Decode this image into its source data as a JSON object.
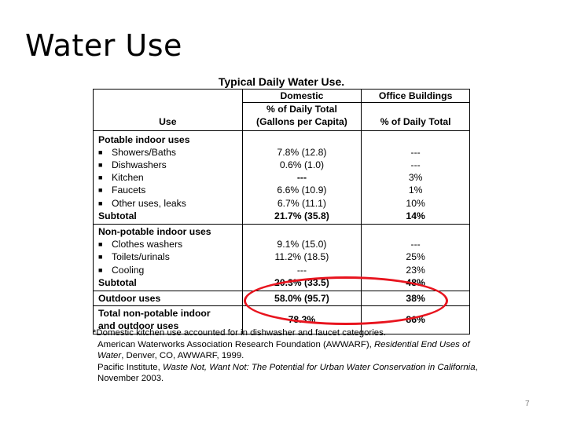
{
  "slide": {
    "title": "Water Use",
    "page_number": "7"
  },
  "table": {
    "caption": "Typical Daily Water Use.",
    "headers": {
      "use": "Use",
      "domestic_group": "Domestic",
      "domestic_sub": "% of Daily Total",
      "domestic_sub2": "(Gallons per Capita)",
      "office_group": "Office Buildings",
      "office_sub": "% of Daily Total"
    },
    "potable": {
      "heading": "Potable indoor uses",
      "rows": [
        {
          "use": "Showers/Baths",
          "domestic": "7.8% (12.8)",
          "office": "---"
        },
        {
          "use": "Dishwashers",
          "domestic": "0.6% (1.0)",
          "office": "---"
        },
        {
          "use": "Kitchen",
          "domestic": "---",
          "office": "3%"
        },
        {
          "use": "Faucets",
          "domestic": "6.6% (10.9)",
          "office": "1%"
        },
        {
          "use": "Other uses, leaks",
          "domestic": "6.7% (11.1)",
          "office": "10%"
        }
      ],
      "subtotal": {
        "use": "Subtotal",
        "domestic": "21.7% (35.8)",
        "office": "14%"
      }
    },
    "nonpotable": {
      "heading": "Non-potable indoor uses",
      "rows": [
        {
          "use": "Clothes washers",
          "domestic": "9.1% (15.0)",
          "office": "---"
        },
        {
          "use": "Toilets/urinals",
          "domestic": "11.2% (18.5)",
          "office": "25%"
        },
        {
          "use": "Cooling",
          "domestic": "---",
          "office": "23%"
        }
      ],
      "subtotal": {
        "use": "Subtotal",
        "domestic": "20.3% (33.5)",
        "office": "48%"
      }
    },
    "outdoor": {
      "use": "Outdoor uses",
      "domestic": "58.0% (95.7)",
      "office": "38%"
    },
    "total": {
      "use_line1": "Total non-potable indoor",
      "use_line2": "and outdoor uses",
      "domestic": "78.3%",
      "office": "86%"
    }
  },
  "footnote": {
    "line1": "*Domestic kitchen use accounted for in dishwasher and faucet categories.",
    "ref1_a": "American Waterworks Association Research Foundation (AWWARF), ",
    "ref1_b": "Residential End Uses of Water",
    "ref1_c": ", Denver, CO, AWWARF, 1999.",
    "ref2_a": "Pacific Institute, ",
    "ref2_b": "Waste Not, Want Not: The Potential for Urban Water Conservation in California",
    "ref2_c": ", November 2003."
  },
  "colors": {
    "highlight": "#e8141e"
  }
}
